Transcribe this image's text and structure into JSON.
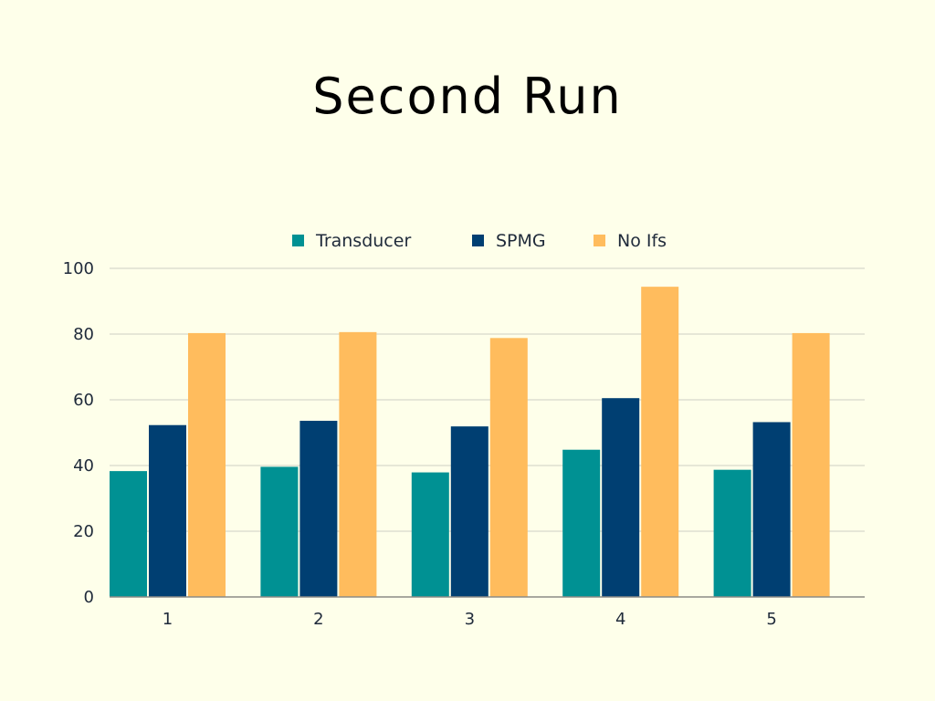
{
  "chart_data": {
    "type": "bar",
    "title": "Second Run",
    "xlabel": "",
    "ylabel": "",
    "categories": [
      "1",
      "2",
      "3",
      "4",
      "5"
    ],
    "series": [
      {
        "name": "Transducer",
        "color": "#009193",
        "values": [
          38.3,
          39.6,
          37.9,
          44.8,
          38.7
        ]
      },
      {
        "name": "SPMG",
        "color": "#003F72",
        "values": [
          52.3,
          53.6,
          51.9,
          60.5,
          53.2
        ]
      },
      {
        "name": "No Ifs",
        "color": "#FFBC5D",
        "values": [
          80.3,
          80.6,
          78.8,
          94.4,
          80.3
        ]
      }
    ],
    "ylim": [
      0,
      100
    ],
    "yticks": [
      0,
      20,
      40,
      60,
      80,
      100
    ],
    "grid": true,
    "legend_position": "top-center"
  }
}
